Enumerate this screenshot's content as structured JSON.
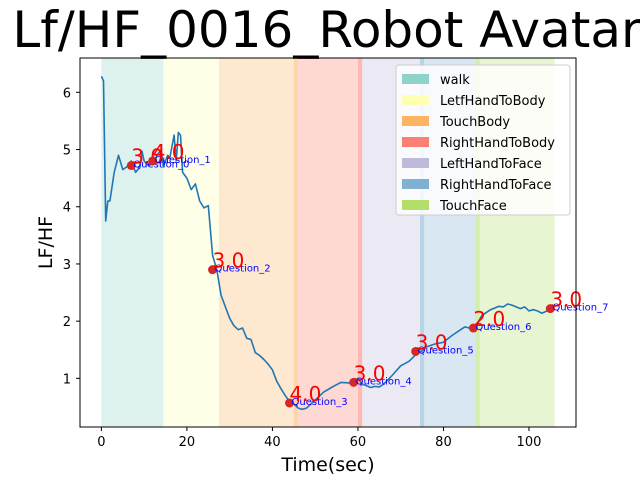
{
  "chart_data": {
    "type": "line",
    "title": "Lf/HF_0016_Robot Avatar",
    "xlabel": "Time(sec)",
    "ylabel": "LF/HF",
    "xlim": [
      -5,
      111
    ],
    "ylim": [
      0.15,
      6.6
    ],
    "xticks": [
      0,
      20,
      40,
      60,
      80,
      100
    ],
    "yticks": [
      1,
      2,
      3,
      4,
      5,
      6
    ],
    "grid": false,
    "legend_position": "top-right",
    "line_color": "#1f77b4",
    "marker_color": "#d62728",
    "label_color": "#0000ff",
    "score_color": "#ff0000",
    "series": [
      {
        "x": [
          0,
          0.5,
          1,
          1.5,
          2,
          3,
          4,
          5,
          6,
          7,
          8,
          8.5,
          9,
          9.5,
          10,
          11,
          12,
          13,
          13.5,
          14,
          14.5,
          15,
          15.5,
          16,
          17,
          17.5,
          18,
          18.5,
          19,
          20,
          21,
          22,
          23,
          24,
          25,
          26,
          27,
          28,
          29,
          30,
          31,
          32,
          33,
          34,
          35,
          36,
          37,
          38,
          39,
          40,
          41,
          42,
          43,
          44,
          45,
          46,
          47,
          48,
          50,
          52,
          54,
          56,
          58,
          59,
          60,
          61,
          62,
          63,
          64,
          65,
          66,
          68,
          70,
          72,
          74,
          75,
          76,
          78,
          80,
          82,
          84,
          85,
          86,
          87,
          88,
          89,
          90,
          91,
          92,
          93,
          94,
          95,
          96,
          97,
          98,
          99,
          100,
          101,
          102,
          103,
          104,
          105
        ],
        "y": [
          6.28,
          6.2,
          3.75,
          4.1,
          4.1,
          4.6,
          4.9,
          4.65,
          4.7,
          4.8,
          4.6,
          4.65,
          4.68,
          4.97,
          4.8,
          4.72,
          4.75,
          4.9,
          4.95,
          5.0,
          4.7,
          4.8,
          4.9,
          4.85,
          5.25,
          4.8,
          5.3,
          5.25,
          4.6,
          4.5,
          4.3,
          4.4,
          4.1,
          3.98,
          4.02,
          3.15,
          2.9,
          2.45,
          2.25,
          2.05,
          1.92,
          1.85,
          1.88,
          1.7,
          1.68,
          1.45,
          1.4,
          1.33,
          1.25,
          1.15,
          0.95,
          0.82,
          0.7,
          0.6,
          0.55,
          0.48,
          0.46,
          0.48,
          0.62,
          0.76,
          0.85,
          0.93,
          0.92,
          0.93,
          1.0,
          0.9,
          0.87,
          0.84,
          0.86,
          0.85,
          0.9,
          1.05,
          1.22,
          1.3,
          1.45,
          1.48,
          1.55,
          1.6,
          1.63,
          1.75,
          1.85,
          1.9,
          1.88,
          1.87,
          1.97,
          2.1,
          2.15,
          2.2,
          2.23,
          2.26,
          2.25,
          2.3,
          2.28,
          2.25,
          2.22,
          2.25,
          2.18,
          2.2,
          2.18,
          2.14,
          2.17,
          2.22
        ]
      }
    ],
    "bands": [
      {
        "name": "walk",
        "x0": 0,
        "x1": 14.5,
        "color": "#8dd3c7"
      },
      {
        "name": "LetfHandToBody",
        "x0": 14.5,
        "x1": 27.5,
        "color": "#ffffb3"
      },
      {
        "name": "TouchBody",
        "x0": 27.5,
        "x1": 45,
        "color": "#fdb462"
      },
      {
        "name": "RightHandToBody",
        "x0": 46,
        "x1": 60,
        "color": "#fb8072"
      },
      {
        "name": "LeftHandToFace",
        "x0": 61,
        "x1": 74.5,
        "color": "#bebada"
      },
      {
        "name": "RightHandToFace",
        "x0": 75.5,
        "x1": 87.5,
        "color": "#80b1d3"
      },
      {
        "name": "TouchFace",
        "x0": 88.5,
        "x1": 106,
        "color": "#b3de69"
      }
    ],
    "band_edges": [
      {
        "x0": 45,
        "x1": 46,
        "color": "#fdb462"
      },
      {
        "x0": 60,
        "x1": 61,
        "color": "#fb8072"
      },
      {
        "x0": 74.5,
        "x1": 75.5,
        "color": "#80b1d3"
      },
      {
        "x0": 87.5,
        "x1": 88.5,
        "color": "#b3de69"
      }
    ],
    "questions": [
      {
        "label": "Question_0",
        "x": 7,
        "y": 4.72,
        "score": "3.0"
      },
      {
        "label": "Question_1",
        "x": 12,
        "y": 4.8,
        "score": "4.0"
      },
      {
        "label": "Question_2",
        "x": 26,
        "y": 2.9,
        "score": "3.0"
      },
      {
        "label": "Question_3",
        "x": 44,
        "y": 0.57,
        "score": "4.0"
      },
      {
        "label": "Question_4",
        "x": 59,
        "y": 0.93,
        "score": "3.0"
      },
      {
        "label": "Question_5",
        "x": 73.5,
        "y": 1.47,
        "score": "3.0"
      },
      {
        "label": "Question_6",
        "x": 87,
        "y": 1.88,
        "score": "2.0"
      },
      {
        "label": "Question_7",
        "x": 105,
        "y": 2.22,
        "score": "3.0"
      }
    ]
  }
}
